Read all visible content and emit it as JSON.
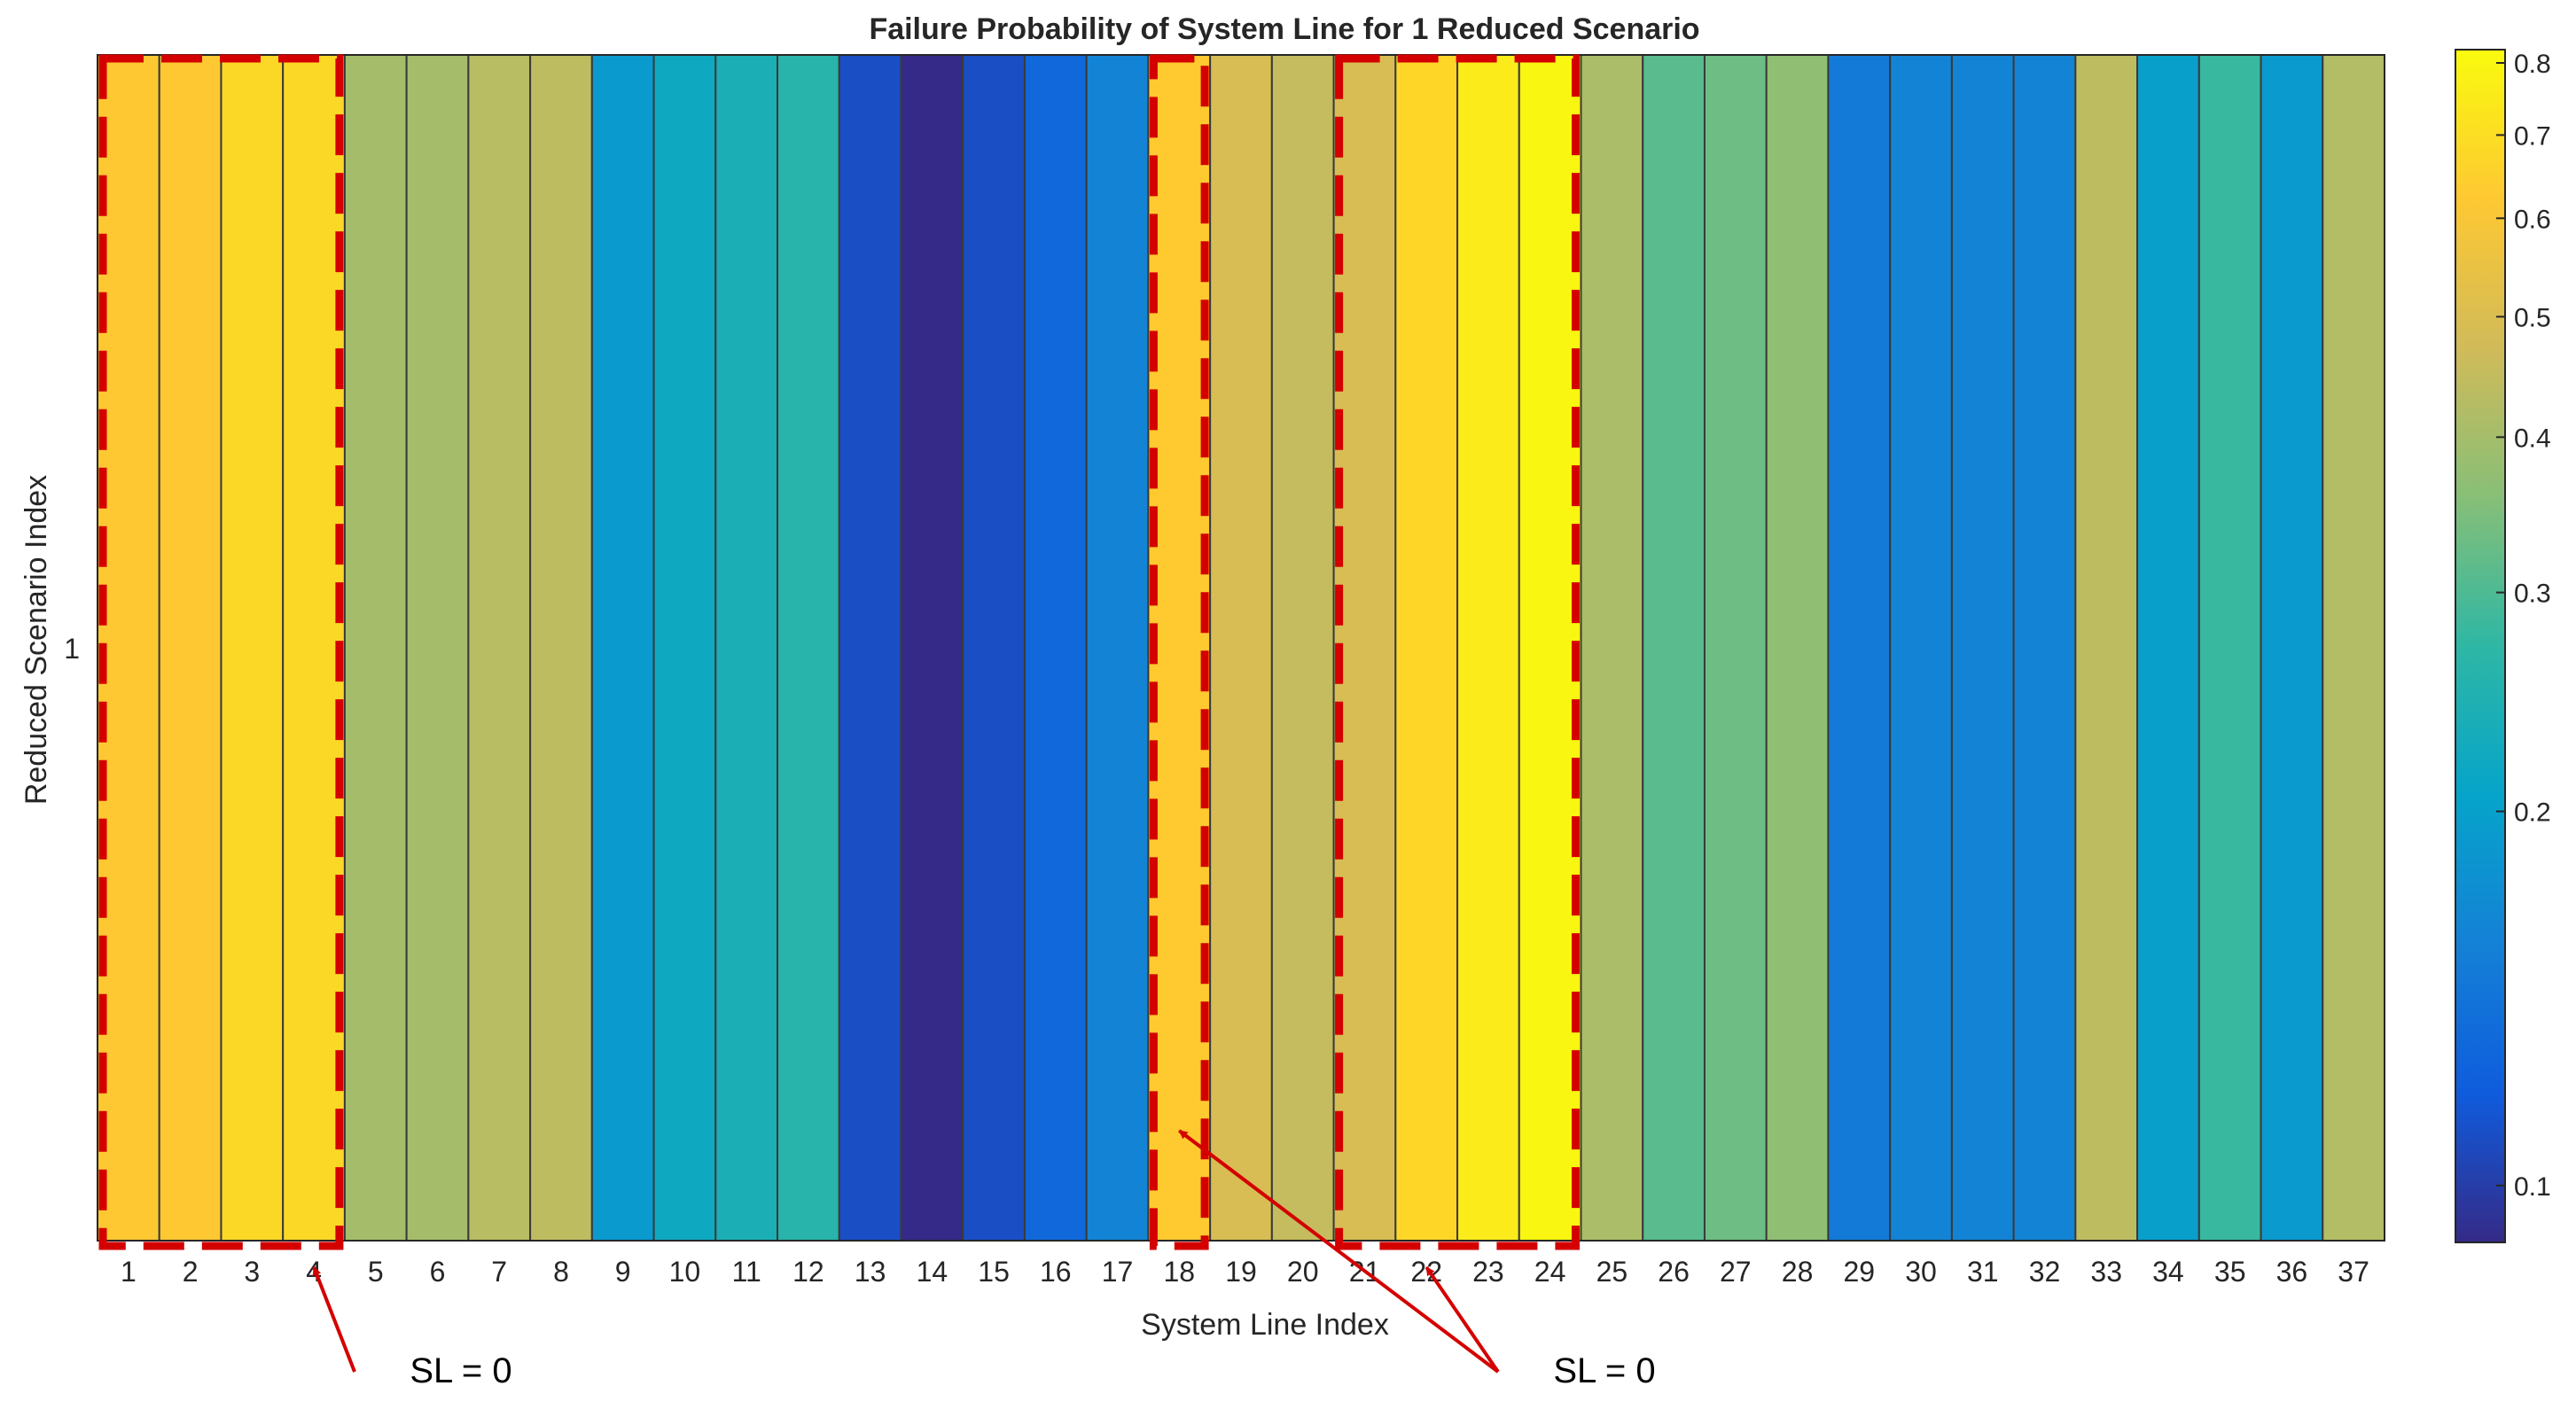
{
  "chart_data": {
    "type": "heatmap",
    "title": "Failure Probability of System Line for 1 Reduced Scenario",
    "xlabel": "System Line Index",
    "ylabel": "Reduced Scenario Index",
    "x": [
      1,
      2,
      3,
      4,
      5,
      6,
      7,
      8,
      9,
      10,
      11,
      12,
      13,
      14,
      15,
      16,
      17,
      18,
      19,
      20,
      21,
      22,
      23,
      24,
      25,
      26,
      27,
      28,
      29,
      30,
      31,
      32,
      33,
      34,
      35,
      36,
      37
    ],
    "y_ticks": [
      "1"
    ],
    "values": [
      0.62,
      0.62,
      0.68,
      0.68,
      0.4,
      0.4,
      0.43,
      0.44,
      0.19,
      0.22,
      0.24,
      0.26,
      0.11,
      0.09,
      0.11,
      0.13,
      0.16,
      0.63,
      0.49,
      0.45,
      0.49,
      0.67,
      0.75,
      0.8,
      0.41,
      0.31,
      0.33,
      0.37,
      0.15,
      0.16,
      0.16,
      0.16,
      0.44,
      0.2,
      0.28,
      0.19,
      0.42
    ],
    "colormap": "parula",
    "colormap_stops": [
      "#352a87",
      "#0f5cdd",
      "#1481d6",
      "#06a4ca",
      "#2eb7a4",
      "#87bf77",
      "#d1bb59",
      "#fec832",
      "#f9fb0e"
    ],
    "clim": [
      0.09,
      0.82
    ],
    "colorbar": {
      "scale": "log",
      "ticks": [
        0.1,
        0.2,
        0.3,
        0.4,
        0.5,
        0.6,
        0.7,
        0.8
      ],
      "tick_labels": [
        "0.1",
        "0.2",
        "0.3",
        "0.4",
        "0.5",
        "0.6",
        "0.7",
        "0.8"
      ]
    },
    "highlight_color": "#d40000",
    "highlight_groups": [
      [
        1,
        4
      ],
      [
        18,
        18
      ],
      [
        21,
        24
      ]
    ],
    "annotations": [
      {
        "text": "SL = 0",
        "points_to": [
          4
        ]
      },
      {
        "text": "SL = 0",
        "points_to": [
          18,
          22
        ]
      }
    ]
  }
}
